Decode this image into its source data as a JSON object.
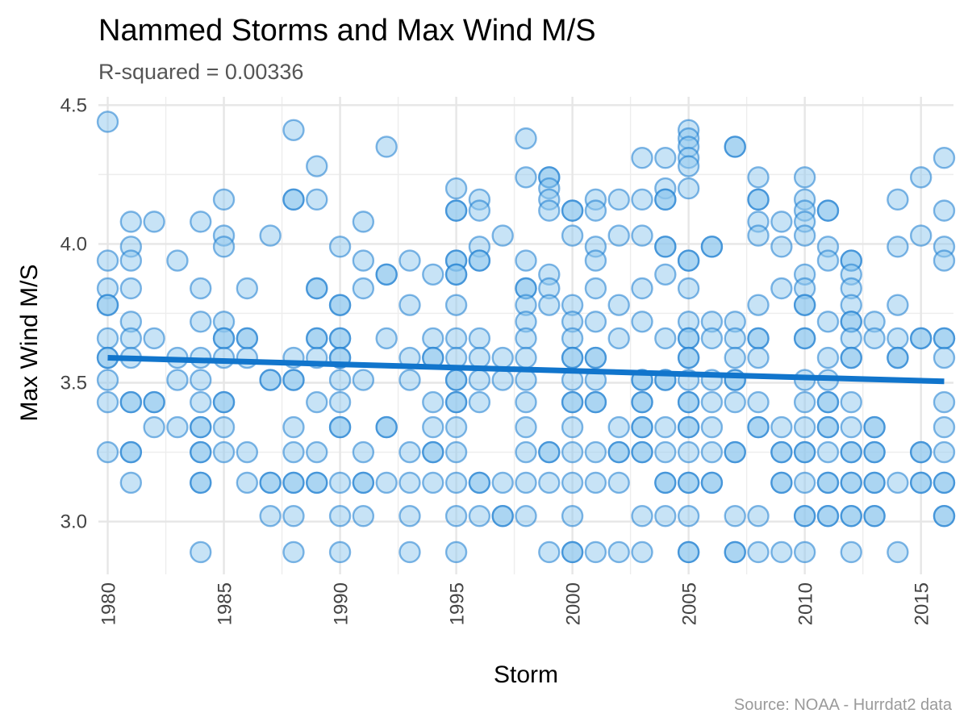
{
  "chart_data": {
    "type": "scatter",
    "title": "Nammed Storms and Max Wind M/S",
    "subtitle": "R-squared =  0.00336",
    "xlabel": "Storm",
    "ylabel": "Max Wind M/S",
    "caption": "Source: NOAA - Hurrdat2 data",
    "xlim": [
      1979.6,
      2016.4
    ],
    "ylim": [
      2.81,
      4.53
    ],
    "x_ticks": [
      "1980",
      "1985",
      "1990",
      "1995",
      "2000",
      "2005",
      "2010",
      "2015"
    ],
    "y_ticks": [
      "3.0",
      "3.5",
      "4.0",
      "4.5"
    ],
    "grid": true,
    "legend": "none",
    "colors": {
      "point_fill": "#90c8ee",
      "point_stroke": "#1a7cd0",
      "trend": "#1175cc"
    },
    "trend_line": {
      "x": [
        1980,
        2016
      ],
      "y": [
        3.59,
        3.505
      ]
    },
    "points": {
      "1980": [
        4.44,
        3.94,
        3.84,
        3.78,
        3.78,
        3.66,
        3.59,
        3.59,
        3.51,
        3.43,
        3.25
      ],
      "1981": [
        4.08,
        3.99,
        3.94,
        3.84,
        3.72,
        3.66,
        3.59,
        3.43,
        3.43,
        3.25,
        3.25,
        3.14
      ],
      "1982": [
        4.08,
        3.66,
        3.43,
        3.43,
        3.34
      ],
      "1983": [
        3.94,
        3.59,
        3.51,
        3.34
      ],
      "1984": [
        4.08,
        3.84,
        3.72,
        3.59,
        3.51,
        3.43,
        3.34,
        3.34,
        3.25,
        3.25,
        3.14,
        3.14,
        2.89
      ],
      "1985": [
        4.16,
        4.03,
        3.99,
        3.72,
        3.66,
        3.66,
        3.59,
        3.43,
        3.43,
        3.34,
        3.25
      ],
      "1986": [
        3.84,
        3.66,
        3.66,
        3.59,
        3.25,
        3.14
      ],
      "1987": [
        4.03,
        3.51,
        3.51,
        3.14,
        3.14,
        3.02
      ],
      "1988": [
        4.41,
        4.16,
        4.16,
        3.59,
        3.51,
        3.51,
        3.34,
        3.25,
        3.14,
        3.14,
        3.02,
        2.89
      ],
      "1989": [
        4.28,
        4.16,
        3.84,
        3.84,
        3.66,
        3.66,
        3.59,
        3.43,
        3.25,
        3.14,
        3.14
      ],
      "1990": [
        3.99,
        3.78,
        3.78,
        3.66,
        3.66,
        3.59,
        3.59,
        3.51,
        3.43,
        3.34,
        3.34,
        3.14,
        3.02,
        2.89
      ],
      "1991": [
        4.08,
        3.94,
        3.84,
        3.51,
        3.25,
        3.14,
        3.14,
        3.02
      ],
      "1992": [
        4.35,
        3.89,
        3.89,
        3.66,
        3.34,
        3.34,
        3.14
      ],
      "1993": [
        3.94,
        3.78,
        3.59,
        3.51,
        3.25,
        3.14,
        3.02,
        2.89
      ],
      "1994": [
        3.89,
        3.66,
        3.59,
        3.59,
        3.43,
        3.34,
        3.25,
        3.25,
        3.14
      ],
      "1995": [
        4.2,
        4.12,
        4.12,
        3.94,
        3.94,
        3.89,
        3.89,
        3.78,
        3.66,
        3.59,
        3.51,
        3.51,
        3.43,
        3.43,
        3.34,
        3.25,
        3.14,
        3.02,
        2.89
      ],
      "1996": [
        4.16,
        4.12,
        3.99,
        3.94,
        3.94,
        3.66,
        3.59,
        3.51,
        3.43,
        3.14,
        3.14,
        3.02
      ],
      "1997": [
        4.03,
        3.59,
        3.51,
        3.14,
        3.02,
        3.02
      ],
      "1998": [
        4.38,
        4.24,
        3.94,
        3.84,
        3.84,
        3.78,
        3.72,
        3.66,
        3.59,
        3.51,
        3.43,
        3.34,
        3.25,
        3.14,
        3.02
      ],
      "1999": [
        4.24,
        4.24,
        4.2,
        4.16,
        4.12,
        3.89,
        3.84,
        3.78,
        3.25,
        3.25,
        3.14,
        2.89
      ],
      "2000": [
        4.12,
        4.12,
        4.03,
        3.78,
        3.72,
        3.66,
        3.59,
        3.59,
        3.51,
        3.43,
        3.43,
        3.34,
        3.25,
        3.14,
        3.02,
        2.89,
        2.89
      ],
      "2001": [
        4.16,
        4.12,
        3.99,
        3.94,
        3.84,
        3.72,
        3.59,
        3.59,
        3.51,
        3.43,
        3.43,
        3.25,
        3.14,
        2.89
      ],
      "2002": [
        4.16,
        4.03,
        3.78,
        3.66,
        3.34,
        3.25,
        3.25,
        3.14,
        2.89
      ],
      "2003": [
        4.31,
        4.16,
        4.03,
        3.84,
        3.72,
        3.51,
        3.51,
        3.43,
        3.43,
        3.34,
        3.34,
        3.25,
        3.25,
        3.02,
        2.89
      ],
      "2004": [
        4.31,
        4.2,
        4.16,
        4.16,
        3.99,
        3.99,
        3.89,
        3.66,
        3.51,
        3.51,
        3.34,
        3.25,
        3.14,
        3.14,
        3.02
      ],
      "2005": [
        4.41,
        4.38,
        4.35,
        4.31,
        4.28,
        4.2,
        3.94,
        3.94,
        3.84,
        3.72,
        3.66,
        3.66,
        3.59,
        3.59,
        3.51,
        3.43,
        3.43,
        3.34,
        3.34,
        3.25,
        3.14,
        3.14,
        3.02,
        2.89,
        2.89
      ],
      "2006": [
        3.99,
        3.99,
        3.72,
        3.66,
        3.51,
        3.43,
        3.34,
        3.25,
        3.14,
        3.14
      ],
      "2007": [
        4.35,
        4.35,
        3.72,
        3.66,
        3.59,
        3.51,
        3.51,
        3.43,
        3.25,
        3.25,
        3.02,
        2.89,
        2.89
      ],
      "2008": [
        4.24,
        4.16,
        4.16,
        4.08,
        4.03,
        3.78,
        3.66,
        3.66,
        3.59,
        3.43,
        3.34,
        3.34,
        3.02,
        2.89
      ],
      "2009": [
        4.08,
        3.99,
        3.84,
        3.34,
        3.25,
        3.25,
        3.14,
        3.14,
        2.89
      ],
      "2010": [
        4.24,
        4.16,
        4.12,
        4.08,
        4.03,
        3.89,
        3.84,
        3.78,
        3.78,
        3.66,
        3.66,
        3.51,
        3.43,
        3.34,
        3.25,
        3.25,
        3.14,
        3.02,
        3.02,
        2.89
      ],
      "2011": [
        4.12,
        4.12,
        3.99,
        3.94,
        3.72,
        3.59,
        3.51,
        3.43,
        3.43,
        3.34,
        3.34,
        3.25,
        3.14,
        3.14,
        3.02,
        3.02
      ],
      "2012": [
        3.94,
        3.94,
        3.89,
        3.84,
        3.78,
        3.72,
        3.72,
        3.66,
        3.59,
        3.59,
        3.43,
        3.34,
        3.25,
        3.25,
        3.14,
        3.14,
        3.02,
        3.02,
        2.89
      ],
      "2013": [
        3.72,
        3.66,
        3.34,
        3.34,
        3.25,
        3.25,
        3.14,
        3.14,
        3.02,
        3.02
      ],
      "2014": [
        4.16,
        3.99,
        3.78,
        3.66,
        3.59,
        3.59,
        3.14,
        2.89
      ],
      "2015": [
        4.24,
        4.03,
        3.66,
        3.66,
        3.25,
        3.25,
        3.14,
        3.14
      ],
      "2016": [
        4.31,
        4.12,
        3.99,
        3.94,
        3.66,
        3.66,
        3.59,
        3.43,
        3.34,
        3.25,
        3.14,
        3.14,
        3.02,
        3.02
      ]
    }
  }
}
